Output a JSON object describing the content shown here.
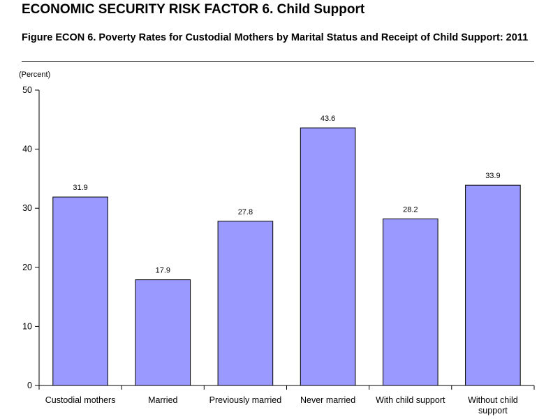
{
  "header": {
    "heading": "ECONOMIC SECURITY RISK FACTOR 6.  Child Support",
    "figure_title": "Figure ECON 6.  Poverty Rates for Custodial Mothers by Marital Status and Receipt of Child Support: 2011"
  },
  "chart_data": {
    "type": "bar",
    "title": "",
    "xlabel": "",
    "ylabel": "(Percent)",
    "categories": [
      [
        "Custodial mothers"
      ],
      [
        "Married"
      ],
      [
        "Previously married"
      ],
      [
        "Never married"
      ],
      [
        "With child support"
      ],
      [
        "Without child",
        "support"
      ]
    ],
    "values": [
      31.9,
      17.9,
      27.8,
      43.6,
      28.2,
      33.9
    ],
    "value_labels": [
      "31.9",
      "17.9",
      "27.8",
      "43.6",
      "28.2",
      "33.9"
    ],
    "ylim": [
      0,
      50
    ],
    "yticks": [
      0,
      10,
      20,
      30,
      40,
      50
    ],
    "grid": false,
    "legend": "none",
    "colors": {
      "bar_fill": "#9999ff",
      "bar_stroke": "#000000",
      "axis": "#000000"
    }
  }
}
